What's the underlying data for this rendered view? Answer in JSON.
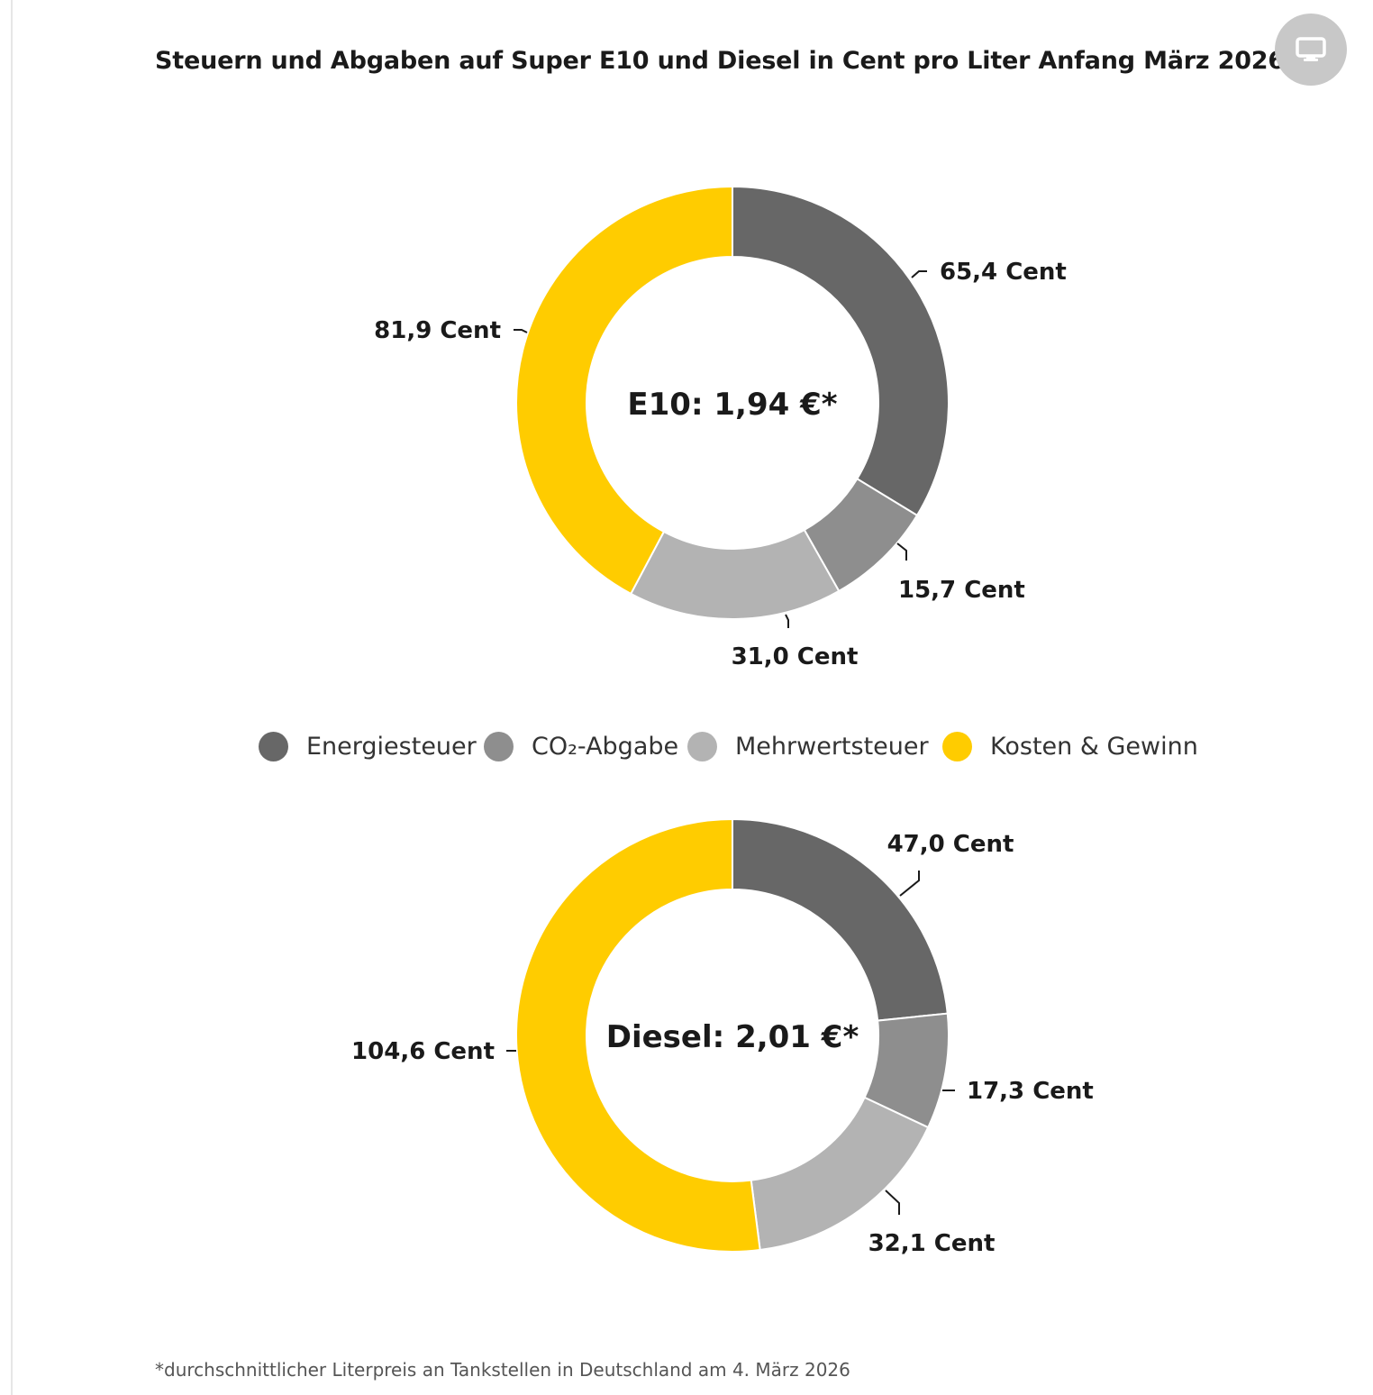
{
  "title": "Steuern und Abgaben auf Super E10 und Diesel in Cent pro Liter Anfang März 2026",
  "icons": {
    "screen_button": "monitor-icon"
  },
  "colors": {
    "energiesteuer": "#676767",
    "co2": "#8e8e8e",
    "mehrwertsteuer": "#b3b3b3",
    "kosten": "#ffcc00"
  },
  "legend": {
    "energiesteuer": "Energiesteuer",
    "co2": "CO₂-Abgabe",
    "mehrwertsteuer": "Mehrwertsteuer",
    "kosten": "Kosten & Gewinn"
  },
  "footnote": "*durchschnittlicher Literpreis an Tankstellen in Deutschland am 4. März 2026",
  "chart_data": [
    {
      "type": "pie",
      "center_label": "E10: 1,94 €*",
      "categories": [
        "Energiesteuer",
        "CO₂-Abgabe",
        "Mehrwertsteuer",
        "Kosten & Gewinn"
      ],
      "values": [
        65.4,
        15.7,
        31.0,
        81.9
      ],
      "labels": [
        "65,4 Cent",
        "15,7 Cent",
        "31,0 Cent",
        "81,9 Cent"
      ],
      "unit": "Cent"
    },
    {
      "type": "pie",
      "center_label": "Diesel: 2,01 €*",
      "categories": [
        "Energiesteuer",
        "CO₂-Abgabe",
        "Mehrwertsteuer",
        "Kosten & Gewinn"
      ],
      "values": [
        47.0,
        17.3,
        32.1,
        104.6
      ],
      "labels": [
        "47,0 Cent",
        "17,3 Cent",
        "32,1 Cent",
        "104,6 Cent"
      ],
      "unit": "Cent"
    }
  ]
}
